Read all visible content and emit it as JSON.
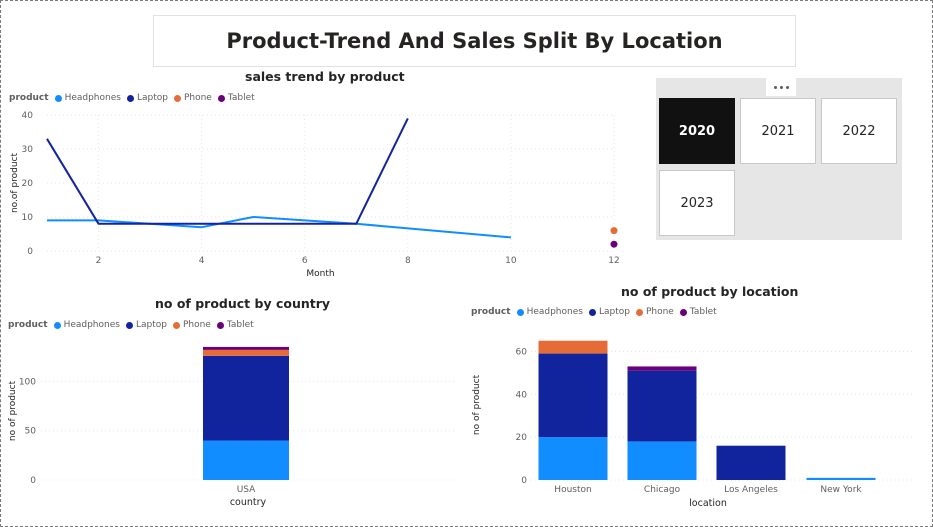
{
  "page_title": "Product-Trend And Sales Split By Location",
  "colors": {
    "Headphones": "#118dff",
    "Laptop": "#12239e",
    "Phone": "#e66c37",
    "Tablet": "#6b007b"
  },
  "slicer": {
    "years": [
      "2020",
      "2021",
      "2022",
      "2023"
    ],
    "selected": "2020"
  },
  "chart_data": [
    {
      "type": "line",
      "title": "sales trend by product",
      "legend_title": "product",
      "legend": [
        "Headphones",
        "Laptop",
        "Phone",
        "Tablet"
      ],
      "xlabel": "Month",
      "ylabel": "no.of product",
      "xlim": [
        1,
        12
      ],
      "ylim": [
        0,
        40
      ],
      "xticks": [
        2,
        4,
        6,
        8,
        10,
        12
      ],
      "yticks": [
        0,
        10,
        20,
        30,
        40
      ],
      "series": [
        {
          "name": "Headphones",
          "x": [
            1,
            2,
            3,
            4,
            5,
            6,
            7,
            10
          ],
          "y": [
            9,
            9,
            8,
            7,
            10,
            9,
            8,
            4
          ]
        },
        {
          "name": "Laptop",
          "x": [
            1,
            2,
            3,
            4,
            5,
            6,
            7,
            8
          ],
          "y": [
            33,
            8,
            8,
            8,
            8,
            8,
            8,
            39
          ]
        },
        {
          "name": "Phone",
          "x": [
            12
          ],
          "y": [
            6
          ]
        },
        {
          "name": "Tablet",
          "x": [
            12
          ],
          "y": [
            2
          ]
        }
      ]
    },
    {
      "type": "bar",
      "stacked": true,
      "title": "no of product by country",
      "legend_title": "product",
      "legend": [
        "Headphones",
        "Laptop",
        "Phone",
        "Tablet"
      ],
      "xlabel": "country",
      "ylabel": "no of product",
      "ylim": [
        0,
        140
      ],
      "yticks": [
        0,
        50,
        100
      ],
      "categories": [
        "USA"
      ],
      "series": [
        {
          "name": "Headphones",
          "values": [
            40
          ]
        },
        {
          "name": "Laptop",
          "values": [
            86
          ]
        },
        {
          "name": "Phone",
          "values": [
            6
          ]
        },
        {
          "name": "Tablet",
          "values": [
            3
          ]
        }
      ]
    },
    {
      "type": "bar",
      "stacked": true,
      "title": "no of product by location",
      "legend_title": "product",
      "legend": [
        "Headphones",
        "Laptop",
        "Phone",
        "Tablet"
      ],
      "xlabel": "location",
      "ylabel": "no of product",
      "ylim": [
        0,
        70
      ],
      "yticks": [
        0,
        20,
        40,
        60
      ],
      "categories": [
        "Houston",
        "Chicago",
        "Los Angeles",
        "New York"
      ],
      "series": [
        {
          "name": "Headphones",
          "values": [
            20,
            18,
            0,
            1
          ]
        },
        {
          "name": "Laptop",
          "values": [
            39,
            33,
            16,
            0
          ]
        },
        {
          "name": "Phone",
          "values": [
            6,
            0,
            0,
            0
          ]
        },
        {
          "name": "Tablet",
          "values": [
            0,
            2,
            0,
            0
          ]
        }
      ]
    }
  ]
}
